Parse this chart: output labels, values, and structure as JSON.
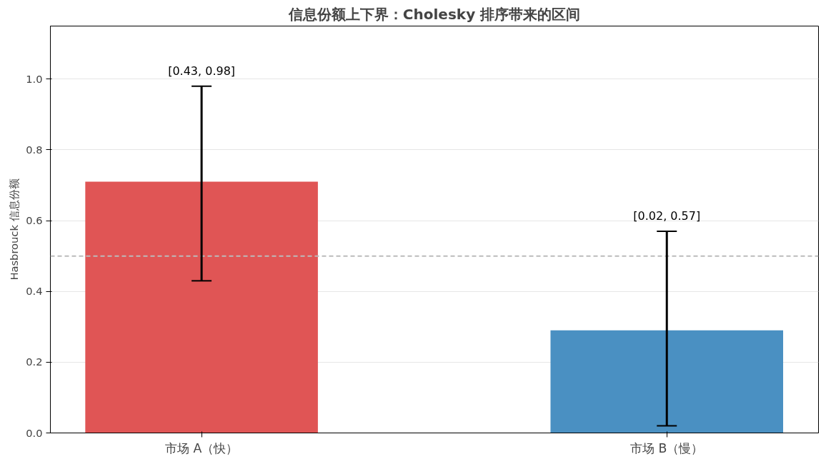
{
  "chart_data": {
    "type": "bar",
    "title": "信息份额上下界：Cholesky 排序带来的区间",
    "ylabel": "Hasbrouck 信息份额",
    "categories": [
      "市场 A（快）",
      "市场 B（慢）"
    ],
    "values": [
      0.71,
      0.29
    ],
    "colors": [
      "#e05555",
      "#4a90c2"
    ],
    "errors": [
      [
        0.43,
        0.98
      ],
      [
        0.02,
        0.57
      ]
    ],
    "annotations": [
      {
        "text": "[0.43, 0.98]",
        "x": "市场 A（快）",
        "y": 0.98
      },
      {
        "text": "[0.02, 0.57]",
        "x": "市场 B（慢）",
        "y": 0.57
      }
    ],
    "ylim": [
      0,
      1.15
    ],
    "yticks": [
      {
        "value": 0,
        "label": "0.0"
      },
      {
        "value": 0.2,
        "label": "0.2"
      },
      {
        "value": 0.4,
        "label": "0.4"
      },
      {
        "value": 0.6,
        "label": "0.6"
      },
      {
        "value": 0.8,
        "label": "0.8"
      },
      {
        "value": 1.0,
        "label": "1.0"
      }
    ],
    "ref_lines": [
      {
        "axis": "y",
        "value": 0.5,
        "label": null,
        "color": "#bbbbbb",
        "line_style": "dashed"
      }
    ],
    "grid": "y"
  }
}
